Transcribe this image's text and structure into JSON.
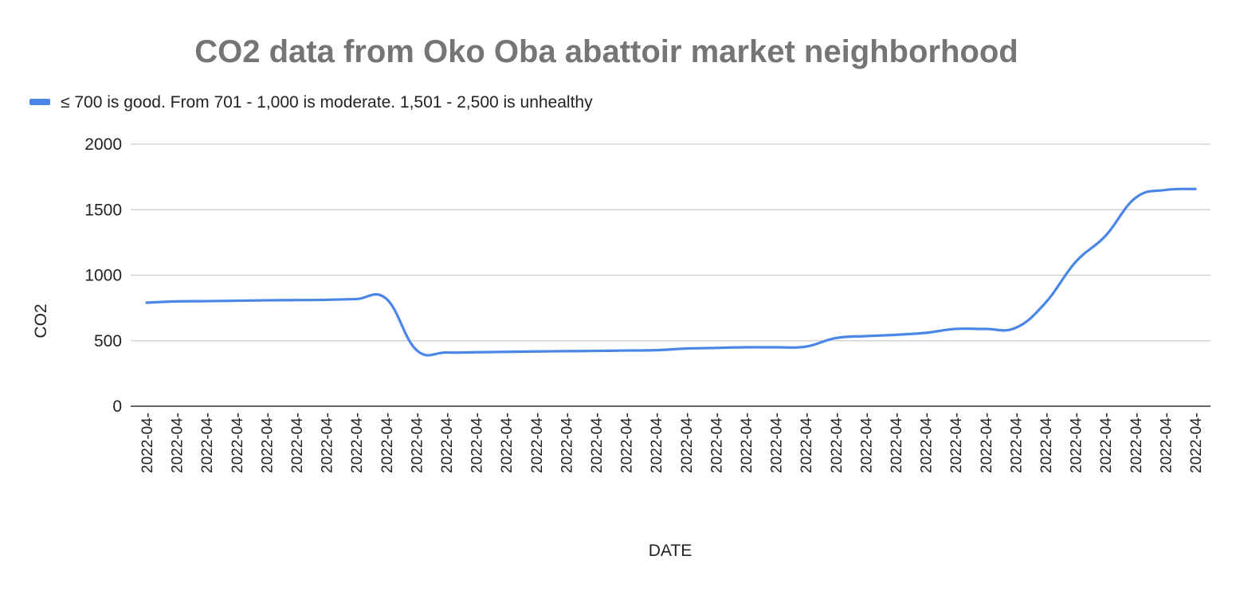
{
  "chart_data": {
    "type": "line",
    "title": "CO2 data from Oko Oba abattoir market neighborhood",
    "xlabel": "DATE",
    "ylabel": "CO2",
    "ylim": [
      0,
      2000
    ],
    "yticks": [
      "0",
      "500",
      "1000",
      "1500",
      "2000"
    ],
    "grid": true,
    "legend_position": "top-left",
    "categories": [
      "2022-04-",
      "2022-04-",
      "2022-04-",
      "2022-04-",
      "2022-04-",
      "2022-04-",
      "2022-04-",
      "2022-04-",
      "2022-04-",
      "2022-04-",
      "2022-04-",
      "2022-04-",
      "2022-04-",
      "2022-04-",
      "2022-04-",
      "2022-04-",
      "2022-04-",
      "2022-04-",
      "2022-04-",
      "2022-04-",
      "2022-04-",
      "2022-04-",
      "2022-04-",
      "2022-04-",
      "2022-04-",
      "2022-04-",
      "2022-04-",
      "2022-04-",
      "2022-04-",
      "2022-04-",
      "2022-04-",
      "2022-04-",
      "2022-04-",
      "2022-04-",
      "2022-04-",
      "2022-04-"
    ],
    "series": [
      {
        "name": "≤ 700 is good. From 701 - 1,000 is moderate. 1,501 - 2,500 is unhealthy",
        "color": "#4a86e8",
        "values": [
          790,
          800,
          802,
          805,
          808,
          810,
          812,
          818,
          820,
          430,
          410,
          412,
          415,
          418,
          420,
          422,
          425,
          428,
          440,
          445,
          450,
          450,
          455,
          520,
          535,
          545,
          560,
          590,
          590,
          598,
          790,
          1100,
          1300,
          1590,
          1650,
          1658
        ]
      }
    ]
  }
}
